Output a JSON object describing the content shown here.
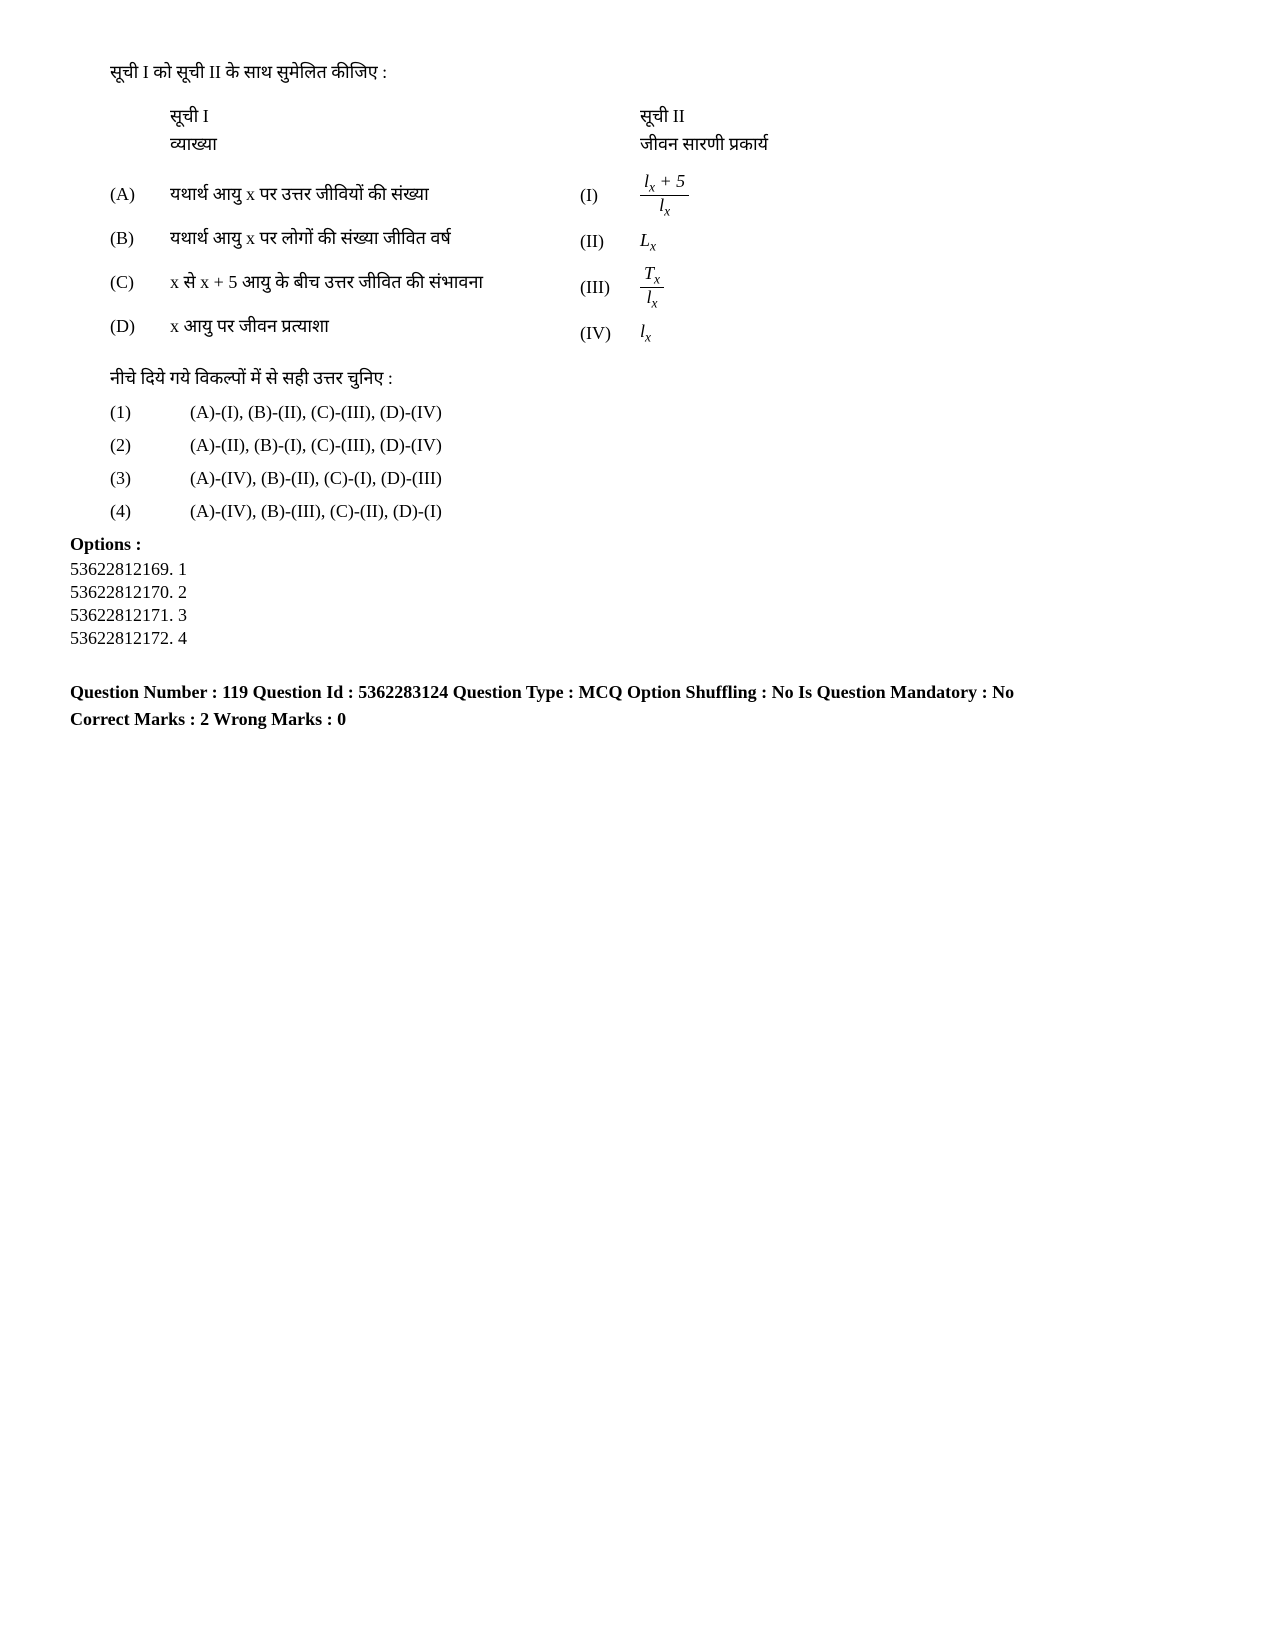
{
  "instruction": "सूची I को सूची II के साथ सुमेलित कीजिए :",
  "list1": {
    "title": "सूची I",
    "subtitle": "व्याख्या",
    "items": [
      {
        "label": "(A)",
        "text": "यथार्थ आयु x पर उत्तर जीवियों की संख्या"
      },
      {
        "label": "(B)",
        "text": "यथार्थ आयु x पर लोगों की संख्या जीवित वर्ष"
      },
      {
        "label": "(C)",
        "text": "x से x + 5 आयु के बीच उत्तर जीवित की संभावना"
      },
      {
        "label": "(D)",
        "text": "x आयु पर जीवन प्रत्याशा"
      }
    ]
  },
  "list2": {
    "title": "सूची II",
    "subtitle": "जीवन सारणी प्रकार्य",
    "items": [
      {
        "label": "(I)",
        "formula_key": "f1"
      },
      {
        "label": "(II)",
        "formula_key": "f2"
      },
      {
        "label": "(III)",
        "formula_key": "f3"
      },
      {
        "label": "(IV)",
        "formula_key": "f4"
      }
    ]
  },
  "formulas": {
    "f1": {
      "type": "frac",
      "num_pre": "l",
      "num_sub": "x",
      "num_post": " + 5",
      "den_pre": "l",
      "den_sub": "x"
    },
    "f2": {
      "type": "sym",
      "pre": "L",
      "sub": "x"
    },
    "f3": {
      "type": "frac",
      "num_pre": "T",
      "num_sub": "x",
      "num_post": "",
      "den_pre": "l",
      "den_sub": "x"
    },
    "f4": {
      "type": "sym",
      "pre": "l",
      "sub": "x"
    }
  },
  "choose_text": "नीचे दिये गये विकल्पों में से सही उत्तर चुनिए :",
  "answers": [
    {
      "num": "(1)",
      "text": "(A)-(I), (B)-(II), (C)-(III), (D)-(IV)"
    },
    {
      "num": "(2)",
      "text": "(A)-(II), (B)-(I), (C)-(III), (D)-(IV)"
    },
    {
      "num": "(3)",
      "text": "(A)-(IV), (B)-(II), (C)-(I), (D)-(III)"
    },
    {
      "num": "(4)",
      "text": "(A)-(IV), (B)-(III), (C)-(II), (D)-(I)"
    }
  ],
  "options_heading": "Options :",
  "options": [
    "53622812169. 1",
    "53622812170. 2",
    "53622812171. 3",
    "53622812172. 4"
  ],
  "meta": {
    "line1": "Question Number : 119 Question Id : 5362283124 Question Type : MCQ Option Shuffling : No Is Question Mandatory : No",
    "line2": "Correct Marks : 2 Wrong Marks : 0"
  }
}
